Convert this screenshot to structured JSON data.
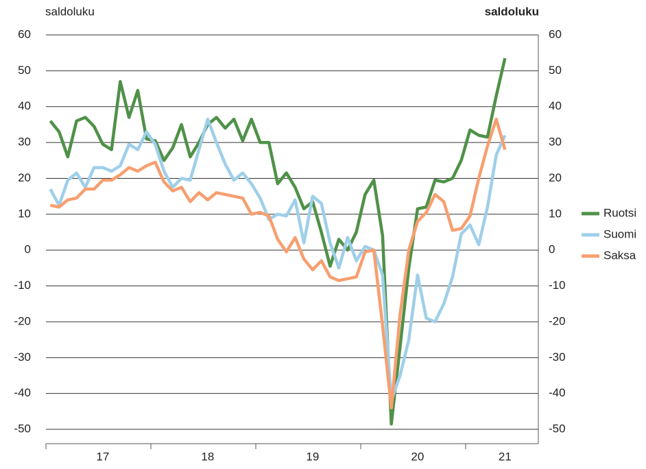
{
  "chart_data": {
    "type": "line",
    "y_label": "saldoluku",
    "y2_label": "saldoluku",
    "categories": [
      null,
      null,
      null,
      null,
      null,
      null,
      "17",
      null,
      null,
      null,
      null,
      null,
      null,
      null,
      null,
      null,
      null,
      null,
      "18",
      null,
      null,
      null,
      null,
      null,
      null,
      null,
      null,
      null,
      null,
      null,
      "19",
      null,
      null,
      null,
      null,
      null,
      null,
      null,
      null,
      null,
      null,
      null,
      "20",
      null,
      null,
      null,
      null,
      null,
      null,
      null,
      null,
      null,
      "21"
    ],
    "series": [
      {
        "name": "Ruotsi",
        "color": "#4f9148",
        "values": [
          36,
          33,
          26,
          36,
          37,
          34.5,
          29.5,
          28,
          47,
          37,
          44.5,
          31,
          30.5,
          25,
          28.5,
          35,
          26,
          30,
          35,
          37,
          34,
          36.5,
          30.5,
          36.5,
          30,
          30,
          18.5,
          21.5,
          17.5,
          11.5,
          13.5,
          5,
          -4.5,
          3,
          0,
          5,
          15.5,
          19.5,
          4,
          -48.5,
          -27,
          -5,
          11.5,
          12,
          19.5,
          19,
          20,
          25,
          33.5,
          32,
          31.5,
          43,
          53.5
        ]
      },
      {
        "name": "Suomi",
        "color": "#9fcfe9",
        "values": [
          17,
          12.5,
          19.5,
          21.5,
          17.5,
          23,
          23,
          22,
          23.5,
          29.5,
          28,
          33,
          29.5,
          22,
          17.5,
          20,
          19.5,
          28,
          36.5,
          30,
          24,
          19.5,
          21.5,
          18.5,
          14.5,
          8.5,
          10,
          9.5,
          14,
          2,
          15,
          13,
          2,
          -5,
          3.5,
          -3,
          1,
          0,
          -7,
          -42,
          -35,
          -25,
          -7,
          -19,
          -20,
          -15,
          -7.5,
          4.5,
          7,
          1.5,
          12,
          26.5,
          32
        ]
      },
      {
        "name": "Saksa",
        "color": "#f79f70",
        "values": [
          12.5,
          12,
          14,
          14.5,
          17,
          17,
          19.5,
          19.5,
          21,
          23,
          22,
          23.5,
          24.5,
          19,
          16.5,
          17.5,
          13.5,
          16,
          14,
          16,
          15.5,
          15,
          14.5,
          10,
          10.5,
          9.5,
          3,
          -0.5,
          3.5,
          -2.5,
          -5.5,
          -3,
          -7.5,
          -8.5,
          -8,
          -7.5,
          -0.5,
          0,
          -21,
          -44,
          -18,
          0,
          8,
          10.5,
          15.5,
          13.5,
          5.5,
          6,
          9.5,
          20,
          29,
          36.5,
          28
        ]
      }
    ],
    "ylim": [
      -54,
      60
    ],
    "yticks": [
      -50,
      -40,
      -30,
      -20,
      -10,
      0,
      10,
      20,
      30,
      40,
      50,
      60
    ],
    "y2lim": [
      -54,
      60
    ],
    "y2ticks": [
      -50,
      -40,
      -30,
      -20,
      -10,
      0,
      10,
      20,
      30,
      40,
      50,
      60
    ],
    "grid": true,
    "legend": "right"
  }
}
